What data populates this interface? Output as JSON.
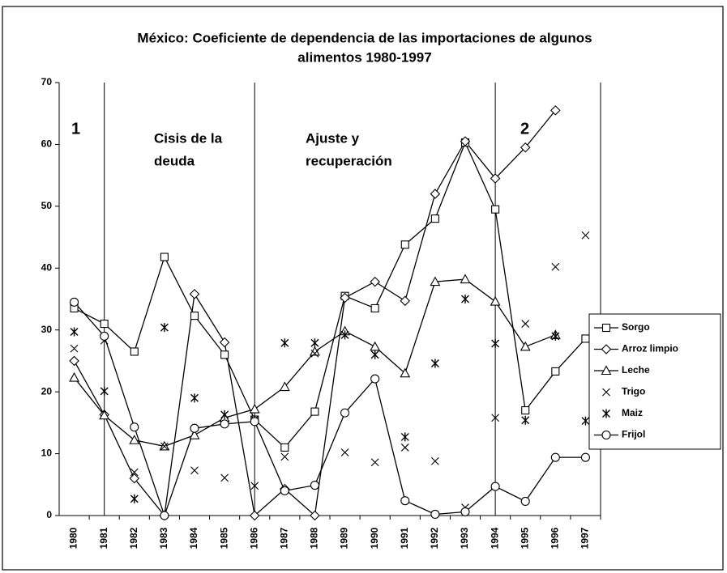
{
  "chart_data": {
    "type": "line",
    "title": [
      "México: Coeficiente de dependencia de las importaciones de algunos",
      "alimentos 1980-1997"
    ],
    "categories": [
      "1980",
      "1981",
      "1982",
      "1983",
      "1984",
      "1985",
      "1986",
      "1987",
      "1988",
      "1989",
      "1990",
      "1991",
      "1992",
      "1993",
      "1994",
      "1995",
      "1996",
      "1997"
    ],
    "series": [
      {
        "name": "Sorgo",
        "color": "#000000",
        "marker": "square",
        "line": true,
        "values": [
          33.5,
          31,
          26.5,
          41.8,
          32.3,
          26,
          15.5,
          11,
          16.8,
          35.5,
          33.5,
          43.8,
          48,
          60.3,
          49.5,
          17,
          23.3,
          28.6
        ]
      },
      {
        "name": "Arroz limpio",
        "color": "#000000",
        "marker": "diamond",
        "line": true,
        "values": [
          25,
          16.3,
          6,
          0,
          35.8,
          28,
          0,
          4.3,
          0,
          35.2,
          37.8,
          34.7,
          52,
          60.5,
          54.5,
          59.5,
          65.5,
          null
        ]
      },
      {
        "name": "Leche",
        "color": "#000000",
        "marker": "triangle",
        "line": true,
        "values": [
          22.3,
          16.2,
          12.2,
          11.2,
          13,
          15.8,
          17.2,
          20.8,
          26.5,
          29.8,
          27.3,
          23,
          37.8,
          38.2,
          34.6,
          27.3,
          29.2,
          null
        ]
      },
      {
        "name": "Trigo",
        "color": "#000000",
        "marker": "x",
        "line": false,
        "values": [
          27,
          28.3,
          7,
          11.2,
          7.3,
          6.1,
          4.8,
          9.5,
          26.2,
          10.2,
          8.6,
          11,
          8.8,
          1.3,
          15.8,
          31,
          40.2,
          45.3
        ]
      },
      {
        "name": "Maiz",
        "color": "#000000",
        "marker": "asterisk",
        "line": false,
        "values": [
          29.7,
          20.1,
          2.7,
          30.4,
          19,
          16.3,
          15.5,
          27.9,
          27.9,
          29.2,
          26,
          12.7,
          24.6,
          35,
          27.8,
          15.4,
          29,
          15.3
        ]
      },
      {
        "name": "Frijol",
        "color": "#000000",
        "marker": "circle",
        "line": true,
        "values": [
          34.5,
          29,
          14.3,
          0,
          14.1,
          14.8,
          15.2,
          4,
          4.9,
          16.6,
          22.1,
          2.4,
          0.2,
          0.6,
          4.7,
          2.3,
          9.4,
          9.4
        ]
      }
    ],
    "ylim": [
      0,
      70
    ],
    "yticks": [
      0,
      10,
      20,
      30,
      40,
      50,
      60,
      70
    ],
    "period_boundaries": [
      "1981",
      "1986",
      "1994"
    ],
    "annotations": [
      [
        "1"
      ],
      [
        "Cisis de la",
        "deuda"
      ],
      [
        "Ajuste y",
        "recuperación"
      ],
      [
        "2"
      ]
    ],
    "legend": "right"
  }
}
